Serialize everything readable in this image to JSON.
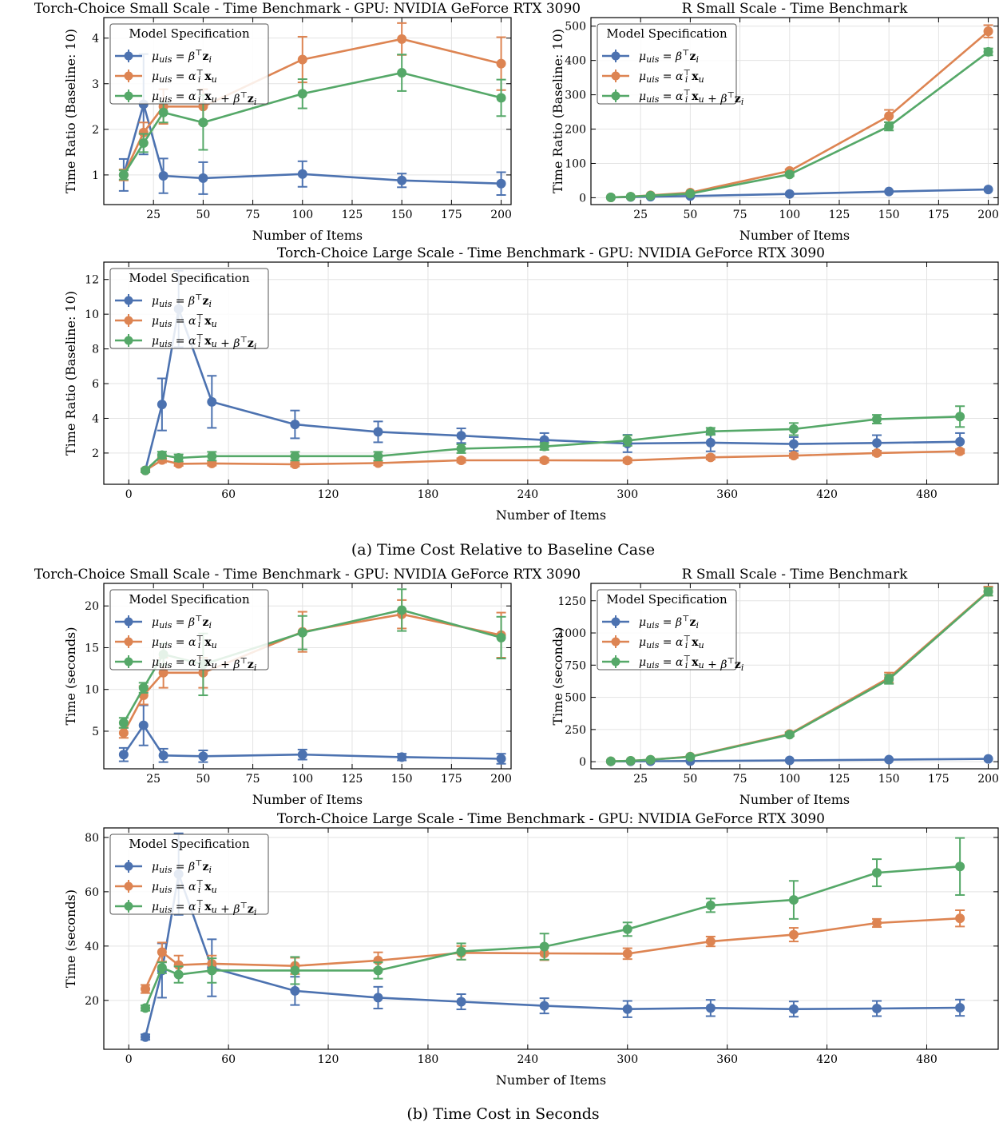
{
  "captions": [
    "(a) Time Cost Relative to Baseline Case",
    "(b) Time Cost in Seconds"
  ],
  "legend_title": "Model Specification",
  "legend_labels": [
    "μuis = β⊤zi",
    "μuis = αi⊤xu",
    "μuis = αi⊤xu + β⊤zi"
  ],
  "colors": {
    "blue": "#4c72b0",
    "orange": "#dd8452",
    "green": "#55a868"
  },
  "chart_data": [
    {
      "type": "line",
      "title": "Torch-Choice Small Scale - Time Benchmark - GPU: NVIDIA GeForce RTX 3090",
      "xlabel": "Number of Items",
      "ylabel": "Time Ratio (Baseline: 10)",
      "xlim": [
        0,
        205
      ],
      "ylim": [
        0.35,
        4.45
      ],
      "xticks": [
        25,
        50,
        75,
        100,
        125,
        150,
        175,
        200
      ],
      "yticks": [
        1,
        2,
        3,
        4
      ],
      "x": [
        10,
        20,
        30,
        50,
        100,
        150,
        200
      ],
      "legend": "top-left",
      "grid": true,
      "series": [
        {
          "color": "blue",
          "values": [
            1.0,
            2.55,
            0.98,
            0.93,
            1.02,
            0.88,
            0.81
          ],
          "err": [
            0.35,
            1.1,
            0.38,
            0.35,
            0.28,
            0.15,
            0.25
          ]
        },
        {
          "color": "orange",
          "values": [
            1.0,
            1.93,
            2.5,
            2.5,
            3.53,
            3.98,
            3.44
          ],
          "err": [
            0.12,
            0.22,
            0.38,
            0.38,
            0.5,
            0.35,
            0.58
          ]
        },
        {
          "color": "green",
          "values": [
            1.0,
            1.7,
            2.37,
            2.15,
            2.78,
            3.24,
            2.69
          ],
          "err": [
            0.1,
            0.2,
            0.22,
            0.6,
            0.32,
            0.4,
            0.4
          ]
        }
      ]
    },
    {
      "type": "line",
      "title": "R Small Scale - Time Benchmark",
      "xlabel": "Number of Items",
      "ylabel": "Time Ratio (Baseline: 10)",
      "xlim": [
        0,
        205
      ],
      "ylim": [
        -20,
        525
      ],
      "xticks": [
        25,
        50,
        75,
        100,
        125,
        150,
        175,
        200
      ],
      "yticks": [
        0,
        100,
        200,
        300,
        400,
        500
      ],
      "x": [
        10,
        20,
        30,
        50,
        100,
        150,
        200
      ],
      "legend": "top-left",
      "grid": true,
      "series": [
        {
          "color": "blue",
          "values": [
            1,
            2,
            3,
            5,
            11,
            18,
            24
          ],
          "err": [
            0,
            0,
            0,
            0,
            0,
            0,
            0
          ]
        },
        {
          "color": "orange",
          "values": [
            1,
            3,
            7,
            15,
            78,
            238,
            485
          ],
          "err": [
            0,
            0,
            0,
            2,
            5,
            18,
            18
          ]
        },
        {
          "color": "green",
          "values": [
            1,
            3,
            6,
            12,
            68,
            208,
            425
          ],
          "err": [
            0,
            0,
            0,
            2,
            5,
            12,
            10
          ]
        }
      ]
    },
    {
      "type": "line",
      "title": "Torch-Choice Large Scale - Time Benchmark - GPU: NVIDIA GeForce RTX 3090",
      "xlabel": "Number of Items",
      "ylabel": "Time Ratio (Baseline: 10)",
      "xlim": [
        -15,
        523
      ],
      "ylim": [
        0.2,
        13.0
      ],
      "xticks": [
        0,
        60,
        120,
        180,
        240,
        300,
        360,
        420,
        480
      ],
      "yticks": [
        2,
        4,
        6,
        8,
        10,
        12
      ],
      "x": [
        10,
        20,
        30,
        50,
        100,
        150,
        200,
        250,
        300,
        350,
        400,
        450,
        500
      ],
      "legend": "top-left",
      "grid": true,
      "series": [
        {
          "color": "blue",
          "values": [
            1.0,
            4.8,
            10.3,
            4.95,
            3.65,
            3.22,
            3.0,
            2.75,
            2.55,
            2.6,
            2.52,
            2.58,
            2.65
          ],
          "err": [
            0.1,
            1.5,
            2.2,
            1.5,
            0.8,
            0.6,
            0.42,
            0.4,
            0.5,
            0.5,
            0.4,
            0.45,
            0.5
          ]
        },
        {
          "color": "orange",
          "values": [
            1.0,
            1.6,
            1.38,
            1.4,
            1.35,
            1.42,
            1.58,
            1.58,
            1.57,
            1.75,
            1.85,
            2.0,
            2.1
          ],
          "err": [
            0.1,
            0.15,
            0.12,
            0.12,
            0.12,
            0.12,
            0.12,
            0.12,
            0.12,
            0.12,
            0.12,
            0.12,
            0.12
          ]
        },
        {
          "color": "green",
          "values": [
            1.0,
            1.88,
            1.72,
            1.82,
            1.82,
            1.82,
            2.25,
            2.38,
            2.72,
            3.25,
            3.38,
            3.95,
            4.1
          ],
          "err": [
            0.1,
            0.2,
            0.2,
            0.25,
            0.25,
            0.25,
            0.25,
            0.2,
            0.3,
            0.2,
            0.35,
            0.25,
            0.6
          ]
        }
      ]
    },
    {
      "type": "line",
      "title": "Torch-Choice Small Scale - Time Benchmark - GPU: NVIDIA GeForce RTX 3090",
      "xlabel": "Number of Items",
      "ylabel": "Time (seconds)",
      "xlim": [
        0,
        205
      ],
      "ylim": [
        0.5,
        22.7
      ],
      "xticks": [
        25,
        50,
        75,
        100,
        125,
        150,
        175,
        200
      ],
      "yticks": [
        5,
        10,
        15,
        20
      ],
      "x": [
        10,
        20,
        30,
        50,
        100,
        150,
        200
      ],
      "legend": "top-left",
      "grid": true,
      "series": [
        {
          "color": "blue",
          "values": [
            2.2,
            5.7,
            2.1,
            2.0,
            2.2,
            1.9,
            1.7
          ],
          "err": [
            0.8,
            2.4,
            0.8,
            0.7,
            0.6,
            0.4,
            0.6
          ]
        },
        {
          "color": "orange",
          "values": [
            4.8,
            9.3,
            12.0,
            12.0,
            16.9,
            19.0,
            16.5
          ],
          "err": [
            0.6,
            1.1,
            1.8,
            1.8,
            2.4,
            1.7,
            2.7
          ]
        },
        {
          "color": "green",
          "values": [
            6.0,
            10.2,
            14.2,
            13.0,
            16.8,
            19.5,
            16.2
          ],
          "err": [
            0.6,
            0.6,
            1.3,
            3.7,
            2.0,
            2.5,
            2.5
          ]
        }
      ]
    },
    {
      "type": "line",
      "title": "R Small Scale - Time Benchmark",
      "xlabel": "Number of Items",
      "ylabel": "Time (seconds)",
      "xlim": [
        0,
        205
      ],
      "ylim": [
        -55,
        1385
      ],
      "xticks": [
        25,
        50,
        75,
        100,
        125,
        150,
        175,
        200
      ],
      "yticks": [
        0,
        250,
        500,
        750,
        1000,
        1250
      ],
      "x": [
        10,
        20,
        30,
        50,
        100,
        150,
        200
      ],
      "legend": "top-left",
      "grid": true,
      "series": [
        {
          "color": "blue",
          "values": [
            2,
            3,
            4,
            5,
            10,
            16,
            22
          ],
          "err": [
            0,
            0,
            0,
            0,
            0,
            0,
            0
          ]
        },
        {
          "color": "orange",
          "values": [
            3,
            7,
            15,
            40,
            215,
            652,
            1325
          ],
          "err": [
            0,
            0,
            3,
            4,
            15,
            40,
            35
          ]
        },
        {
          "color": "green",
          "values": [
            3,
            7,
            15,
            38,
            210,
            640,
            1320
          ],
          "err": [
            0,
            0,
            3,
            4,
            12,
            35,
            30
          ]
        }
      ]
    },
    {
      "type": "line",
      "title": "Torch-Choice Large Scale - Time Benchmark - GPU: NVIDIA GeForce RTX 3090",
      "xlabel": "Number of Items",
      "ylabel": "Time (seconds)",
      "xlim": [
        -15,
        523
      ],
      "ylim": [
        2,
        83.5
      ],
      "xticks": [
        0,
        60,
        120,
        180,
        240,
        300,
        360,
        420,
        480
      ],
      "yticks": [
        20,
        40,
        60,
        80
      ],
      "x": [
        10,
        20,
        30,
        50,
        100,
        150,
        200,
        250,
        300,
        350,
        400,
        450,
        500
      ],
      "legend": "top-left",
      "grid": true,
      "series": [
        {
          "color": "blue",
          "values": [
            6.5,
            31.0,
            66.5,
            32.0,
            23.5,
            21.0,
            19.5,
            18.0,
            16.8,
            17.2,
            16.8,
            17.0,
            17.3
          ],
          "err": [
            1.0,
            10.0,
            15.0,
            10.5,
            5.2,
            4.0,
            2.8,
            2.8,
            3.0,
            3.0,
            2.8,
            2.8,
            3.0
          ]
        },
        {
          "color": "orange",
          "values": [
            24.2,
            37.8,
            33.0,
            33.5,
            32.7,
            34.7,
            37.5,
            37.3,
            37.2,
            41.7,
            44.2,
            48.5,
            50.2
          ],
          "err": [
            1.5,
            3.5,
            3.5,
            3.0,
            3.0,
            3.0,
            2.5,
            2.5,
            2.0,
            1.8,
            2.5,
            1.5,
            3.0
          ]
        },
        {
          "color": "green",
          "values": [
            17.2,
            32.0,
            29.5,
            31.0,
            31.0,
            31.0,
            38.0,
            39.8,
            46.2,
            55.0,
            57.0,
            67.0,
            69.3
          ],
          "err": [
            1.0,
            2.0,
            3.0,
            4.5,
            5.0,
            3.0,
            3.0,
            4.8,
            2.5,
            2.5,
            7.0,
            5.0,
            10.5
          ]
        }
      ]
    }
  ]
}
